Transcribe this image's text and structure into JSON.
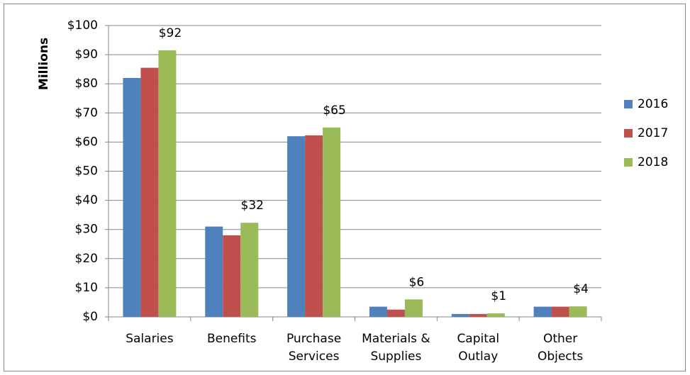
{
  "chart_data": {
    "type": "bar",
    "y_label": "Millions",
    "categories": [
      [
        "Salaries"
      ],
      [
        "Benefits"
      ],
      [
        "Purchase",
        "Services"
      ],
      [
        "Materials &",
        "Supplies"
      ],
      [
        "Capital",
        "Outlay"
      ],
      [
        "Other",
        "Objects"
      ]
    ],
    "series": [
      {
        "name": "2016",
        "color": "#4f81bd",
        "values": [
          82,
          31,
          62,
          3.5,
          1,
          3.5
        ]
      },
      {
        "name": "2017",
        "color": "#c0504d",
        "values": [
          85.5,
          28,
          62.3,
          2.5,
          1,
          3.5
        ]
      },
      {
        "name": "2018",
        "color": "#9bbb59",
        "values": [
          91.5,
          32.3,
          65,
          6,
          1.2,
          3.6
        ],
        "value_labels": [
          "$92",
          "$32",
          "$65",
          "$6",
          "$1",
          "$4"
        ]
      }
    ],
    "ylim": [
      0,
      100
    ],
    "yticks": [
      {
        "value": 0,
        "label": "$0"
      },
      {
        "value": 10,
        "label": "$10"
      },
      {
        "value": 20,
        "label": "$20"
      },
      {
        "value": 30,
        "label": "$30"
      },
      {
        "value": 40,
        "label": "$40"
      },
      {
        "value": 50,
        "label": "$50"
      },
      {
        "value": 60,
        "label": "$60"
      },
      {
        "value": 70,
        "label": "$70"
      },
      {
        "value": 80,
        "label": "$80"
      },
      {
        "value": 90,
        "label": "$90"
      },
      {
        "value": 100,
        "label": "$100"
      }
    ],
    "grid": true,
    "legend": "right"
  }
}
